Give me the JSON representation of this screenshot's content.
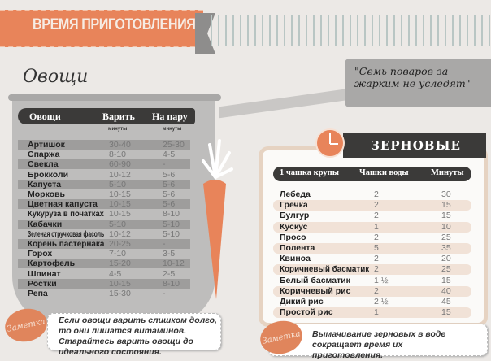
{
  "title": "ВРЕМЯ ПРИГОТОВЛЕНИЯ",
  "vegetables": {
    "heading": "Овощи",
    "columns": [
      "Овощи",
      "Варить",
      "На пару"
    ],
    "units": [
      "минуты",
      "минуты"
    ],
    "rows": [
      [
        "Артишок",
        "30-40",
        "25-30"
      ],
      [
        "Спаржа",
        "8-10",
        "4-5"
      ],
      [
        "Свекла",
        "60-90",
        "-"
      ],
      [
        "Брокколи",
        "10-12",
        "5-6"
      ],
      [
        "Капуста",
        "5-10",
        "5-6"
      ],
      [
        "Морковь",
        "10-15",
        "5-6"
      ],
      [
        "Цветная капуста",
        "10-15",
        "5-6"
      ],
      [
        "Кукуруза в початках",
        "10-15",
        "8-10"
      ],
      [
        "Кабачки",
        "5-10",
        "5-10"
      ],
      [
        "Зеленая стручковая фасоль",
        "10-12",
        "5-10"
      ],
      [
        "Корень пастернака",
        "20-25",
        "-"
      ],
      [
        "Горох",
        "7-10",
        "3-5"
      ],
      [
        "Картофель",
        "15-20",
        "10-12"
      ],
      [
        "Шпинат",
        "4-5",
        "2-5"
      ],
      [
        "Ростки",
        "10-15",
        "8-10"
      ],
      [
        "Репа",
        "15-30",
        "-"
      ]
    ],
    "note_label": "Заметка",
    "note": "Если овощи варить слишком долго, то они лишатся витаминов. Старайтесь варить овощи до идеального состояния."
  },
  "quote": "\"Семь поваров за жарким не уследят\"",
  "grains": {
    "heading": "ЗЕРНОВЫЕ",
    "columns": [
      "1 чашка крупы",
      "Чашки воды",
      "Минуты"
    ],
    "rows": [
      [
        "Лебеда",
        "2",
        "30"
      ],
      [
        "Гречка",
        "2",
        "15"
      ],
      [
        "Булгур",
        "2",
        "15"
      ],
      [
        "Кускус",
        "1",
        "10"
      ],
      [
        "Просо",
        "2",
        "25"
      ],
      [
        "Полента",
        "5",
        "35"
      ],
      [
        "Квиноа",
        "2",
        "20"
      ],
      [
        "Коричневый басматик",
        "2",
        "25"
      ],
      [
        "Белый басматик",
        "1 ½",
        "15"
      ],
      [
        "Коричневый рис",
        "2",
        "40"
      ],
      [
        "Дикий рис",
        "2 ½",
        "45"
      ],
      [
        "Простой рис",
        "1",
        "15"
      ]
    ],
    "note_label": "Заметка",
    "note": "Вымачивание зерновых в воде сокращает время их приготовления."
  },
  "colors": {
    "accent": "#e8845a",
    "dark": "#3b3a39",
    "pot": "#bebdbc"
  }
}
